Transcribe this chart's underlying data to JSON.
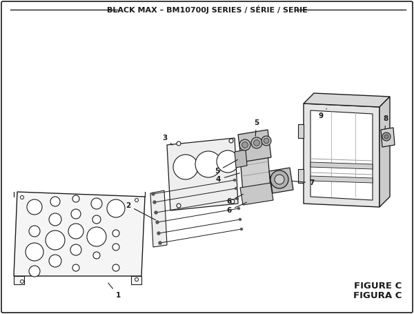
{
  "title": "BLACK MAX – BM10700J SERIES / SÉRIE / SERIE",
  "figure_label_1": "FIGURE C",
  "figure_label_2": "FIGURA C",
  "bg_color": "#ffffff",
  "lc": "#1a1a1a",
  "fill_panel": "#f2f2f2",
  "fill_mid": "#e8e8e8",
  "fill_dark": "#c8c8c8",
  "fill_darker": "#aaaaaa",
  "title_fontsize": 8.0,
  "label_fontsize": 7.5,
  "caption_fontsize": 9.5
}
